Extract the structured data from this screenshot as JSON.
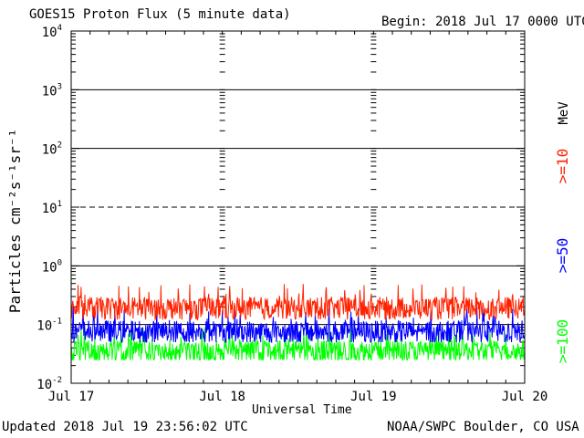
{
  "chart_data": {
    "type": "line",
    "title": "GOES15 Proton Flux (5 minute data)",
    "begin_label": "Begin: 2018 Jul 17 0000 UTC",
    "xlabel": "Universal Time",
    "ylabel": "Particles cm⁻²s⁻¹sr⁻¹",
    "unit_label": "MeV",
    "x_range_hours": [
      0,
      72
    ],
    "x_ticks": [
      {
        "hour": 0,
        "label": "Jul 17"
      },
      {
        "hour": 24,
        "label": "Jul 18"
      },
      {
        "hour": 48,
        "label": "Jul 19"
      },
      {
        "hour": 72,
        "label": "Jul 20"
      }
    ],
    "y_scale": "log",
    "ylim": [
      0.01,
      10000
    ],
    "y_ticks": [
      {
        "value": 0.01,
        "base": "10",
        "exp": "-2"
      },
      {
        "value": 0.1,
        "base": "10",
        "exp": "-1"
      },
      {
        "value": 1,
        "base": "10",
        "exp": "0"
      },
      {
        "value": 10,
        "base": "10",
        "exp": "1"
      },
      {
        "value": 100,
        "base": "10",
        "exp": "2"
      },
      {
        "value": 1000,
        "base": "10",
        "exp": "3"
      },
      {
        "value": 10000,
        "base": "10",
        "exp": "4"
      }
    ],
    "reference_lines": [
      {
        "value": 1000,
        "style": "solid"
      },
      {
        "value": 100,
        "style": "solid"
      },
      {
        "value": 10,
        "style": "dashed"
      },
      {
        "value": 1,
        "style": "solid"
      },
      {
        "value": 0.1,
        "style": "solid"
      }
    ],
    "series": [
      {
        "name": ">=10",
        "color": "#ff2200",
        "mean": 0.19,
        "min": 0.12,
        "max": 0.5
      },
      {
        "name": ">=50",
        "color": "#0000ff",
        "mean": 0.075,
        "min": 0.05,
        "max": 0.2
      },
      {
        "name": ">=100",
        "color": "#00ff00",
        "mean": 0.035,
        "min": 0.025,
        "max": 0.09
      }
    ]
  },
  "footer": {
    "updated": "Updated 2018 Jul 19 23:56:02 UTC",
    "credit": "NOAA/SWPC Boulder, CO USA"
  }
}
